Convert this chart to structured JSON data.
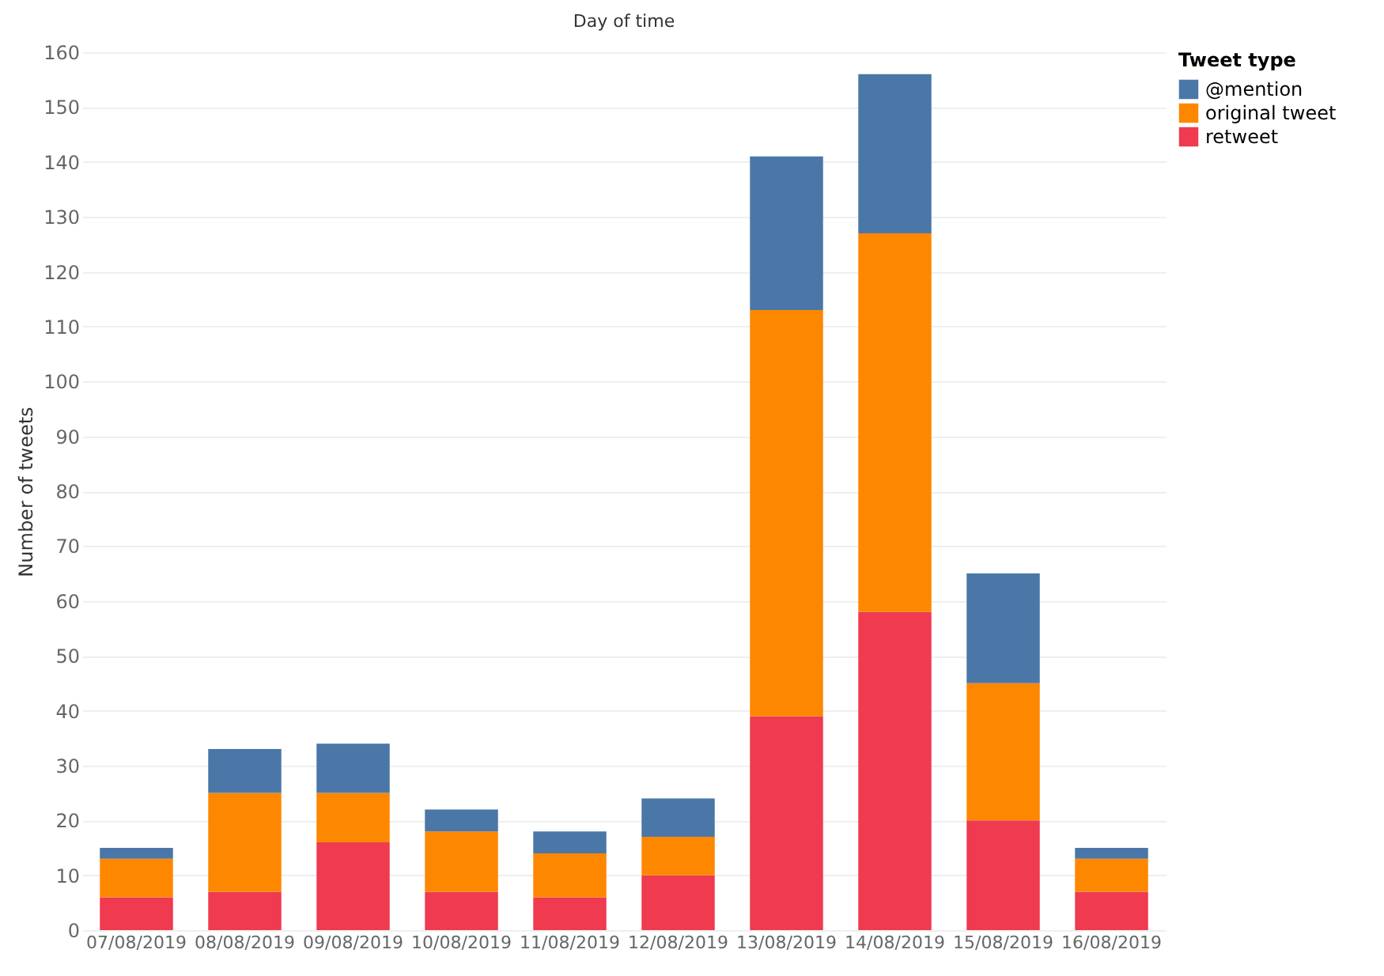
{
  "chart_data": {
    "type": "bar",
    "stacked": true,
    "xlabel": "Day of time",
    "ylabel": "Number of tweets",
    "legend_title": "Tweet type",
    "categories": [
      "07/08/2019",
      "08/08/2019",
      "09/08/2019",
      "10/08/2019",
      "11/08/2019",
      "12/08/2019",
      "13/08/2019",
      "14/08/2019",
      "15/08/2019",
      "16/08/2019"
    ],
    "series": [
      {
        "name": "retweet",
        "color": "#ef3a4f",
        "values": [
          6,
          7,
          16,
          7,
          6,
          10,
          39,
          58,
          20,
          7
        ]
      },
      {
        "name": "original tweet",
        "color": "#fe8700",
        "values": [
          7,
          18,
          9,
          11,
          8,
          7,
          74,
          69,
          25,
          6
        ]
      },
      {
        "name": "@mention",
        "color": "#4a77a8",
        "values": [
          2,
          8,
          9,
          4,
          4,
          7,
          28,
          29,
          20,
          2
        ]
      }
    ],
    "ylim": [
      0,
      160
    ],
    "yticks": [
      0,
      10,
      20,
      30,
      40,
      50,
      60,
      70,
      80,
      90,
      100,
      110,
      120,
      130,
      140,
      150,
      160
    ],
    "grid": "y",
    "legend": "top right"
  }
}
